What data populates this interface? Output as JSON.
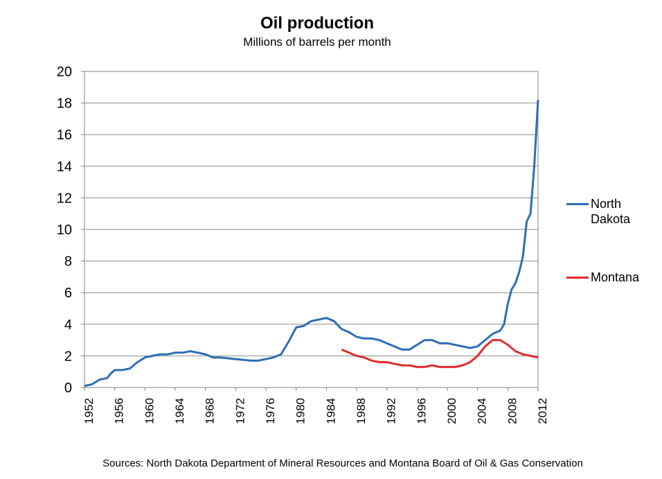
{
  "chart_data": {
    "type": "line",
    "title": "Oil production",
    "subtitle": "Millions of barrels per month",
    "xlabel": "",
    "ylabel": "",
    "xlim": [
      1952,
      2012
    ],
    "ylim": [
      0,
      20
    ],
    "x_ticks": [
      "1952",
      "1956",
      "1960",
      "1964",
      "1968",
      "1972",
      "1976",
      "1980",
      "1984",
      "1988",
      "1992",
      "1996",
      "2000",
      "2004",
      "2008",
      "2012"
    ],
    "y_ticks": [
      "0",
      "2",
      "4",
      "6",
      "8",
      "10",
      "12",
      "14",
      "16",
      "18",
      "20"
    ],
    "grid": true,
    "legend_position": "right",
    "series": [
      {
        "name": "North Dakota",
        "color": "#2E6DB4",
        "x": [
          1952.0,
          1953.0,
          1954.0,
          1955.0,
          1955.5,
          1956.0,
          1957.0,
          1958.0,
          1959.0,
          1960.0,
          1961.0,
          1962.0,
          1963.0,
          1964.0,
          1965.0,
          1966.0,
          1967.0,
          1968.0,
          1969.0,
          1970.0,
          1972.0,
          1974.0,
          1975.0,
          1976.0,
          1977.0,
          1978.0,
          1979.0,
          1980.0,
          1981.0,
          1982.0,
          1983.0,
          1984.0,
          1985.0,
          1986.0,
          1987.0,
          1988.0,
          1989.0,
          1990.0,
          1991.0,
          1992.0,
          1993.0,
          1994.0,
          1995.0,
          1996.0,
          1997.0,
          1998.0,
          1999.0,
          2000.0,
          2001.0,
          2002.0,
          2003.0,
          2004.0,
          2005.0,
          2006.0,
          2007.0,
          2007.5,
          2008.0,
          2008.5,
          2009.0,
          2009.5,
          2010.0,
          2010.5,
          2011.0,
          2011.5,
          2012.0
        ],
        "values": [
          0.1,
          0.2,
          0.5,
          0.6,
          0.9,
          1.1,
          1.1,
          1.2,
          1.6,
          1.9,
          2.0,
          2.1,
          2.1,
          2.2,
          2.2,
          2.3,
          2.2,
          2.1,
          1.9,
          1.9,
          1.8,
          1.7,
          1.7,
          1.8,
          1.9,
          2.1,
          2.9,
          3.8,
          3.9,
          4.2,
          4.3,
          4.4,
          4.2,
          3.7,
          3.5,
          3.2,
          3.1,
          3.1,
          3.0,
          2.8,
          2.6,
          2.4,
          2.4,
          2.7,
          3.0,
          3.0,
          2.8,
          2.8,
          2.7,
          2.6,
          2.5,
          2.6,
          3.0,
          3.4,
          3.6,
          4.0,
          5.3,
          6.2,
          6.6,
          7.3,
          8.3,
          10.5,
          11.0,
          14.0,
          18.2
        ]
      },
      {
        "name": "Montana",
        "color": "#E32B2B",
        "x": [
          1986.0,
          1987.0,
          1988.0,
          1989.0,
          1990.0,
          1991.0,
          1992.0,
          1993.0,
          1994.0,
          1995.0,
          1996.0,
          1997.0,
          1998.0,
          1999.0,
          2000.0,
          2001.0,
          2002.0,
          2003.0,
          2004.0,
          2005.0,
          2006.0,
          2007.0,
          2008.0,
          2009.0,
          2010.0,
          2011.0,
          2012.0
        ],
        "values": [
          2.4,
          2.2,
          2.0,
          1.9,
          1.7,
          1.6,
          1.6,
          1.5,
          1.4,
          1.4,
          1.3,
          1.3,
          1.4,
          1.3,
          1.3,
          1.3,
          1.4,
          1.6,
          2.0,
          2.6,
          3.0,
          3.0,
          2.7,
          2.3,
          2.1,
          2.0,
          1.9
        ]
      }
    ],
    "source_note": "Sources: North Dakota Department of Mineral Resources and Montana Board of Oil & Gas Conservation"
  }
}
